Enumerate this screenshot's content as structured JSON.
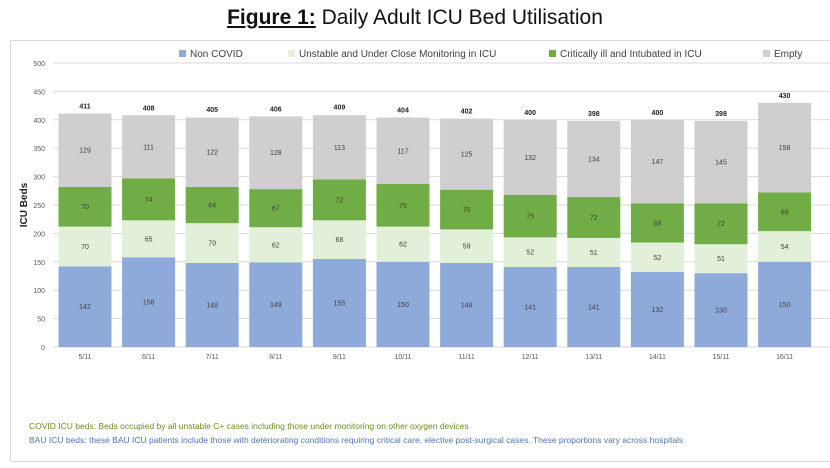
{
  "figure": {
    "title_prefix": "Figure 1:",
    "title_text": "Daily Adult ICU Bed Utilisation"
  },
  "colors": {
    "non_covid": "#8eaadb",
    "unstable": "#e2efd9",
    "critical": "#70ad47",
    "empty": "#d0cece"
  },
  "chart_data": {
    "type": "bar",
    "stacked": true,
    "ylabel": "ICU Beds",
    "ylim": [
      0,
      500
    ],
    "yticks": [
      0,
      50,
      100,
      150,
      200,
      250,
      300,
      350,
      400,
      450,
      500
    ],
    "grid": true,
    "legend_position": "top",
    "categories": [
      "5/11",
      "6/11",
      "7/11",
      "8/11",
      "9/11",
      "10/11",
      "11/11",
      "12/11",
      "13/11",
      "14/11",
      "15/11",
      "16/11"
    ],
    "series": [
      {
        "name": "Non COVID",
        "values": [
          142,
          158,
          148,
          149,
          155,
          150,
          148,
          141,
          141,
          132,
          130,
          150
        ]
      },
      {
        "name": "Unstable and Under Close Monitoring in ICU",
        "values": [
          70,
          65,
          70,
          62,
          68,
          62,
          59,
          52,
          51,
          52,
          51,
          54
        ]
      },
      {
        "name": "Critically ill and Intubated in ICU",
        "values": [
          70,
          74,
          64,
          67,
          72,
          75,
          70,
          75,
          72,
          69,
          72,
          68
        ]
      },
      {
        "name": "Empty",
        "values": [
          129,
          111,
          122,
          128,
          113,
          117,
          125,
          132,
          134,
          147,
          145,
          158
        ]
      }
    ],
    "totals": [
      411,
      408,
      405,
      406,
      409,
      404,
      402,
      400,
      398,
      400,
      398,
      430
    ]
  },
  "notes": {
    "covid": "COVID ICU beds: Beds occupied by all unstable C+ cases including those under monitoring on other oxygen devices",
    "bau": "BAU ICU beds: these BAU ICU patients include those with deteriorating conditions requiring critical care, elective post-surgical cases. These proportions vary across hospitals"
  }
}
